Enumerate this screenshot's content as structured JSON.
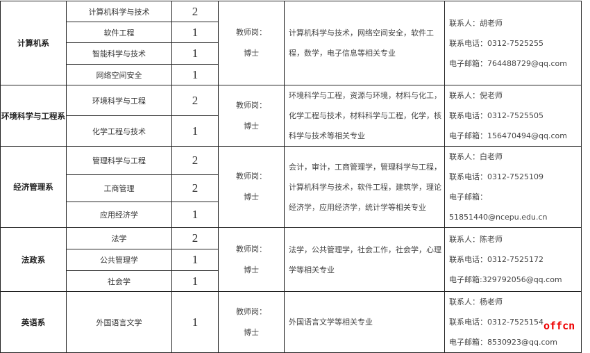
{
  "departments": [
    {
      "name": "计算机系",
      "majors": [
        {
          "name": "计算机科学与技术",
          "count": "2"
        },
        {
          "name": "软件工程",
          "count": "1"
        },
        {
          "name": "智能科学与技术",
          "count": "1"
        },
        {
          "name": "网络空间安全",
          "count": "1"
        }
      ],
      "post": [
        "教师岗：",
        "博士"
      ],
      "requirements": "计算机科学与技术，网络空间安全，软件工程，数学，电子信息等相关专业",
      "contact": [
        "联系人：胡老师",
        "联系电话：0312-7525255",
        "电子邮箱：764488729@qq.com"
      ]
    },
    {
      "name": "环境科学与工程系",
      "majors": [
        {
          "name": "环境科学与工程",
          "count": "2"
        },
        {
          "name": "化学工程与技术",
          "count": "1"
        }
      ],
      "post": [
        "教师岗：",
        "博士"
      ],
      "requirements": "环境科学与工程，资源与环境，材料与化工，化学工程与技术，材料科学与工程，化学，核科学与技术等相关专业",
      "contact": [
        "联系人：倪老师",
        "联系电话：0312-7525505",
        "电子邮箱：156470494@qq.com"
      ]
    },
    {
      "name": "经济管理系",
      "majors": [
        {
          "name": "管理科学与工程",
          "count": "2"
        },
        {
          "name": "工商管理",
          "count": "2"
        },
        {
          "name": "应用经济学",
          "count": "1"
        }
      ],
      "post": [
        "教师岗：",
        "博士"
      ],
      "requirements": "会计，审计，工商管理学，管理科学与工程，计算机科学与技术，软件工程，建筑学，理论经济学，应用经济学，统计学等相关专业",
      "contact": [
        "联系人：白老师",
        "联系电话：0312-7525109",
        "电子邮箱：51851440@ncepu.edu.cn"
      ]
    },
    {
      "name": "法政系",
      "majors": [
        {
          "name": "法学",
          "count": "2"
        },
        {
          "name": "公共管理学",
          "count": "1"
        },
        {
          "name": "社会学",
          "count": "1"
        }
      ],
      "post": [
        "教师岗：",
        "博士"
      ],
      "requirements": "法学，公共管理学，社会工作，社会学，心理学等相关专业",
      "contact": [
        "联系人：陈老师",
        "联系电话：0312-7525172",
        "电子邮箱:329792056@qq.com"
      ]
    },
    {
      "name": "英语系",
      "majors": [
        {
          "name": "外国语言文学",
          "count": "1"
        }
      ],
      "post": [
        "教师岗：",
        "博士"
      ],
      "requirements": "外国语言文学等相关专业",
      "contact": [
        "联系人：杨老师",
        "联系电话：0312-7525154",
        "电子邮箱：8530923@qq.com"
      ]
    }
  ],
  "watermark": "offcn"
}
